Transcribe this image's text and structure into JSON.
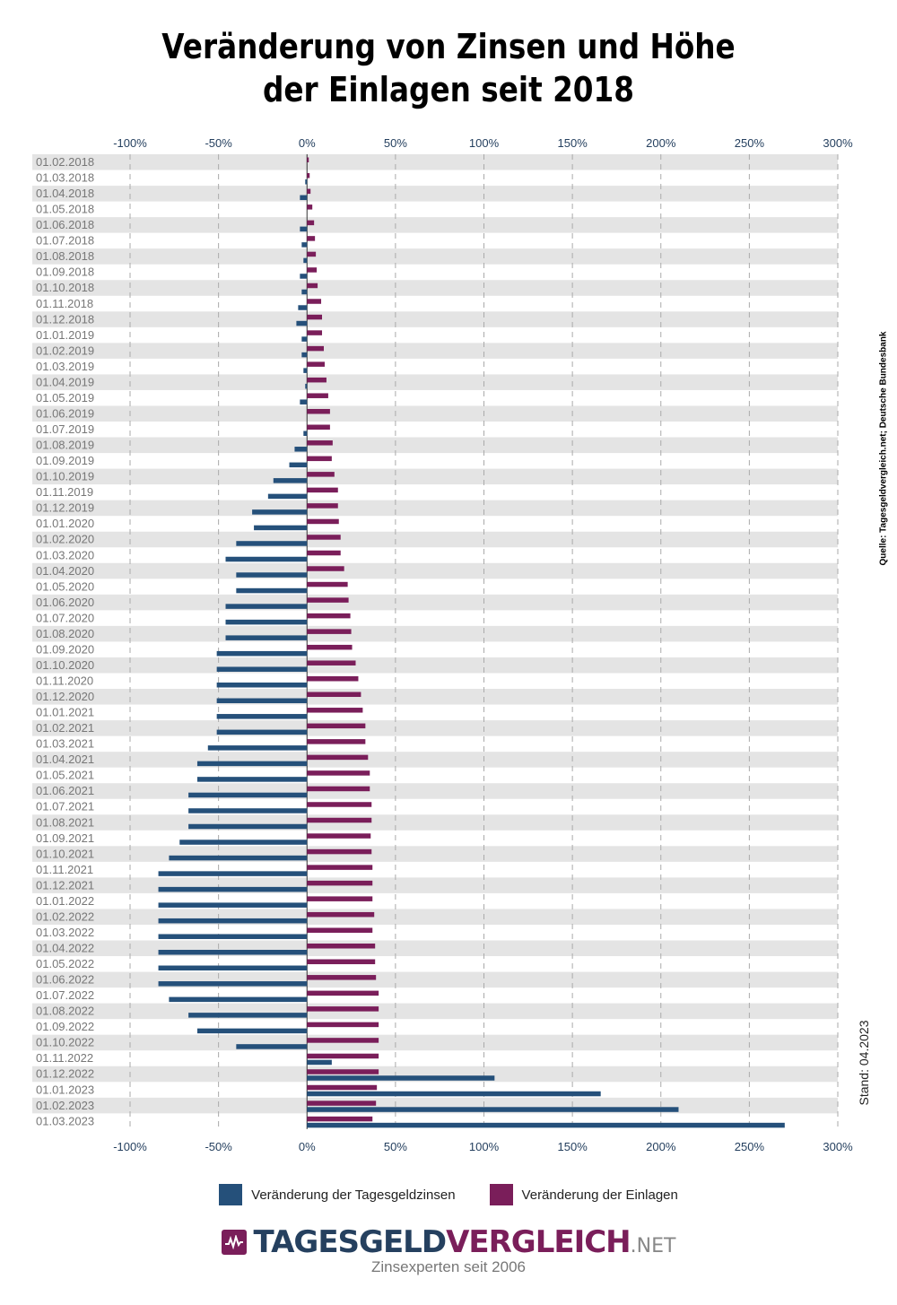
{
  "chart_data": {
    "type": "bar",
    "orientation": "horizontal",
    "title": [
      "Veränderung von Zinsen und Höhe",
      "der Einlagen seit 2018"
    ],
    "xlim": [
      -100,
      300
    ],
    "xticks": [
      -100,
      -50,
      0,
      50,
      100,
      150,
      200,
      250,
      300
    ],
    "xtick_labels": [
      "-100%",
      "-50%",
      "0%",
      "50%",
      "100%",
      "150%",
      "200%",
      "250%",
      "300%"
    ],
    "grid": true,
    "categories": [
      "01.02.2018",
      "01.03.2018",
      "01.04.2018",
      "01.05.2018",
      "01.06.2018",
      "01.07.2018",
      "01.08.2018",
      "01.09.2018",
      "01.10.2018",
      "01.11.2018",
      "01.12.2018",
      "01.01.2019",
      "01.02.2019",
      "01.03.2019",
      "01.04.2019",
      "01.05.2019",
      "01.06.2019",
      "01.07.2019",
      "01.08.2019",
      "01.09.2019",
      "01.10.2019",
      "01.11.2019",
      "01.12.2019",
      "01.01.2020",
      "01.02.2020",
      "01.03.2020",
      "01.04.2020",
      "01.05.2020",
      "01.06.2020",
      "01.07.2020",
      "01.08.2020",
      "01.09.2020",
      "01.10.2020",
      "01.11.2020",
      "01.12.2020",
      "01.01.2021",
      "01.02.2021",
      "01.03.2021",
      "01.04.2021",
      "01.05.2021",
      "01.06.2021",
      "01.07.2021",
      "01.08.2021",
      "01.09.2021",
      "01.10.2021",
      "01.11.2021",
      "01.12.2021",
      "01.01.2022",
      "01.02.2022",
      "01.03.2022",
      "01.04.2022",
      "01.05.2022",
      "01.06.2022",
      "01.07.2022",
      "01.08.2022",
      "01.09.2022",
      "01.10.2022",
      "01.11.2022",
      "01.12.2022",
      "01.01.2023",
      "01.02.2023",
      "01.03.2023"
    ],
    "series": [
      {
        "name": "Veränderung der Tagesgeldzinsen",
        "color": "#25507a",
        "values": [
          0,
          -1,
          -4,
          0,
          -4,
          -3,
          -2,
          -4,
          -3,
          -5,
          -6,
          -3,
          -3,
          -2,
          -1,
          -4,
          0,
          -2,
          -7,
          -10,
          -19,
          -22,
          -31,
          -30,
          -40,
          -46,
          -40,
          -40,
          -46,
          -46,
          -46,
          -51,
          -51,
          -51,
          -51,
          -51,
          -51,
          -56,
          -62,
          -62,
          -67,
          -67,
          -67,
          -72,
          -78,
          -84,
          -84,
          -84,
          -84,
          -84,
          -84,
          -84,
          -84,
          -78,
          -67,
          -62,
          -40,
          14,
          106,
          166,
          210,
          270
        ]
      },
      {
        "name": "Veränderung der Einlagen",
        "color": "#7a1e5a",
        "values": [
          1,
          1.5,
          2,
          3,
          4,
          4.5,
          5,
          5.5,
          6,
          8,
          8.5,
          8.5,
          9.5,
          10,
          11,
          12,
          13,
          13,
          14.5,
          14,
          15.5,
          17.5,
          17.5,
          18,
          19,
          19,
          21,
          23,
          23.5,
          24.5,
          25,
          25.5,
          27.5,
          29,
          30.5,
          31.5,
          33,
          33,
          34.5,
          35.5,
          35.5,
          36.5,
          36.5,
          36,
          36.5,
          37,
          37,
          37,
          38,
          37,
          38.5,
          38.5,
          39,
          40.5,
          40.5,
          40.5,
          40.5,
          40.5,
          40.5,
          39.5,
          39,
          37
        ]
      }
    ],
    "legend_position": "bottom-center",
    "source": "Quelle: Tagesgeldvergleich.net; Deutsche Bundesbank",
    "note": "Stand: 04.2023"
  },
  "brand": {
    "name_part1": "TAGESGELD",
    "name_part2": "VERGLEICH",
    "tld": ".NET",
    "tagline": "Zinsexperten seit 2006"
  }
}
